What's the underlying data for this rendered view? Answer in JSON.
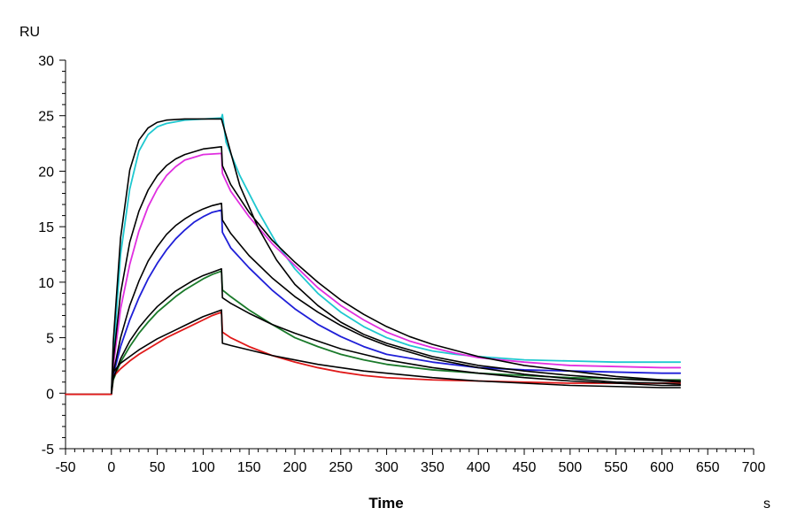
{
  "chart_data": {
    "type": "line",
    "xlabel": "Time",
    "xunit": "s",
    "ylabel": "RU",
    "xlim": [
      -50,
      700
    ],
    "ylim": [
      -5,
      30
    ],
    "xticks": [
      -50,
      0,
      50,
      100,
      150,
      200,
      250,
      300,
      350,
      400,
      450,
      500,
      550,
      600,
      650,
      700
    ],
    "yticks": [
      -5,
      0,
      5,
      10,
      15,
      20,
      25,
      30
    ],
    "grid": false,
    "legend": "none",
    "association_end": 120,
    "series": [
      {
        "color": "#1fc8d0",
        "kind": "measured",
        "points": [
          [
            -50,
            -0.1
          ],
          [
            0,
            -0.1
          ],
          [
            2,
            3.2
          ],
          [
            10,
            12.5
          ],
          [
            20,
            18.4
          ],
          [
            30,
            21.8
          ],
          [
            40,
            23.3
          ],
          [
            50,
            24.0
          ],
          [
            60,
            24.3
          ],
          [
            80,
            24.6
          ],
          [
            100,
            24.7
          ],
          [
            120,
            24.8
          ],
          [
            121,
            25.1
          ],
          [
            125,
            22.6
          ],
          [
            140,
            19.6
          ],
          [
            160,
            16.4
          ],
          [
            180,
            13.5
          ],
          [
            200,
            11.2
          ],
          [
            225,
            9.0
          ],
          [
            250,
            7.3
          ],
          [
            275,
            6.0
          ],
          [
            300,
            5.0
          ],
          [
            325,
            4.3
          ],
          [
            350,
            3.8
          ],
          [
            375,
            3.5
          ],
          [
            400,
            3.3
          ],
          [
            450,
            3.0
          ],
          [
            500,
            2.9
          ],
          [
            550,
            2.8
          ],
          [
            600,
            2.8
          ],
          [
            620,
            2.8
          ]
        ]
      },
      {
        "color": "#000000",
        "kind": "fit",
        "points": [
          [
            0,
            0
          ],
          [
            2,
            4.6
          ],
          [
            10,
            14.0
          ],
          [
            20,
            20.1
          ],
          [
            30,
            22.8
          ],
          [
            40,
            23.9
          ],
          [
            50,
            24.4
          ],
          [
            60,
            24.6
          ],
          [
            80,
            24.7
          ],
          [
            100,
            24.7
          ],
          [
            120,
            24.7
          ],
          [
            140,
            18.7
          ],
          [
            160,
            14.9
          ],
          [
            180,
            12.0
          ],
          [
            200,
            9.8
          ],
          [
            225,
            7.9
          ],
          [
            250,
            6.4
          ],
          [
            275,
            5.3
          ],
          [
            300,
            4.5
          ],
          [
            350,
            3.3
          ],
          [
            400,
            2.5
          ],
          [
            450,
            2.0
          ],
          [
            500,
            1.6
          ],
          [
            550,
            1.3
          ],
          [
            600,
            1.1
          ],
          [
            620,
            1.0
          ]
        ]
      },
      {
        "color": "#e02fe0",
        "kind": "measured",
        "points": [
          [
            -50,
            -0.1
          ],
          [
            0,
            -0.1
          ],
          [
            2,
            2.4
          ],
          [
            10,
            7.6
          ],
          [
            20,
            11.6
          ],
          [
            30,
            14.6
          ],
          [
            40,
            16.8
          ],
          [
            50,
            18.4
          ],
          [
            60,
            19.6
          ],
          [
            70,
            20.4
          ],
          [
            80,
            21.0
          ],
          [
            100,
            21.5
          ],
          [
            120,
            21.6
          ],
          [
            121,
            19.8
          ],
          [
            130,
            18.2
          ],
          [
            150,
            15.9
          ],
          [
            175,
            13.5
          ],
          [
            200,
            11.5
          ],
          [
            225,
            9.5
          ],
          [
            250,
            7.9
          ],
          [
            275,
            6.6
          ],
          [
            300,
            5.5
          ],
          [
            325,
            4.7
          ],
          [
            350,
            4.1
          ],
          [
            375,
            3.6
          ],
          [
            400,
            3.2
          ],
          [
            450,
            2.8
          ],
          [
            500,
            2.5
          ],
          [
            550,
            2.4
          ],
          [
            600,
            2.3
          ],
          [
            620,
            2.3
          ]
        ]
      },
      {
        "color": "#000000",
        "kind": "fit",
        "points": [
          [
            0,
            0
          ],
          [
            2,
            2.9
          ],
          [
            10,
            9.0
          ],
          [
            20,
            13.6
          ],
          [
            30,
            16.4
          ],
          [
            40,
            18.3
          ],
          [
            50,
            19.6
          ],
          [
            60,
            20.5
          ],
          [
            70,
            21.1
          ],
          [
            80,
            21.5
          ],
          [
            100,
            22.0
          ],
          [
            120,
            22.2
          ],
          [
            121,
            20.5
          ],
          [
            130,
            18.8
          ],
          [
            150,
            16.3
          ],
          [
            175,
            13.8
          ],
          [
            200,
            11.8
          ],
          [
            225,
            10.0
          ],
          [
            250,
            8.4
          ],
          [
            275,
            7.1
          ],
          [
            300,
            6.0
          ],
          [
            325,
            5.1
          ],
          [
            350,
            4.4
          ],
          [
            400,
            3.3
          ],
          [
            450,
            2.5
          ],
          [
            500,
            2.0
          ],
          [
            550,
            1.5
          ],
          [
            600,
            1.2
          ],
          [
            620,
            1.1
          ]
        ]
      },
      {
        "color": "#1f1fd8",
        "kind": "measured",
        "points": [
          [
            -50,
            -0.1
          ],
          [
            0,
            -0.1
          ],
          [
            2,
            1.6
          ],
          [
            10,
            4.2
          ],
          [
            20,
            6.6
          ],
          [
            30,
            8.6
          ],
          [
            40,
            10.3
          ],
          [
            50,
            11.7
          ],
          [
            60,
            12.9
          ],
          [
            70,
            13.9
          ],
          [
            80,
            14.7
          ],
          [
            90,
            15.4
          ],
          [
            100,
            15.9
          ],
          [
            110,
            16.3
          ],
          [
            120,
            16.5
          ],
          [
            121,
            14.5
          ],
          [
            130,
            13.1
          ],
          [
            150,
            11.3
          ],
          [
            175,
            9.3
          ],
          [
            200,
            7.6
          ],
          [
            225,
            6.2
          ],
          [
            250,
            5.1
          ],
          [
            275,
            4.2
          ],
          [
            300,
            3.5
          ],
          [
            350,
            2.8
          ],
          [
            400,
            2.3
          ],
          [
            450,
            2.1
          ],
          [
            500,
            2.0
          ],
          [
            550,
            1.9
          ],
          [
            600,
            1.8
          ],
          [
            620,
            1.8
          ]
        ]
      },
      {
        "color": "#000000",
        "kind": "fit",
        "points": [
          [
            0,
            0
          ],
          [
            2,
            1.8
          ],
          [
            10,
            5.0
          ],
          [
            20,
            7.9
          ],
          [
            30,
            10.1
          ],
          [
            40,
            11.9
          ],
          [
            50,
            13.2
          ],
          [
            60,
            14.3
          ],
          [
            70,
            15.1
          ],
          [
            80,
            15.7
          ],
          [
            90,
            16.2
          ],
          [
            100,
            16.6
          ],
          [
            110,
            16.9
          ],
          [
            120,
            17.1
          ],
          [
            121,
            15.6
          ],
          [
            130,
            14.4
          ],
          [
            150,
            12.4
          ],
          [
            175,
            10.4
          ],
          [
            200,
            8.7
          ],
          [
            225,
            7.3
          ],
          [
            250,
            6.1
          ],
          [
            275,
            5.1
          ],
          [
            300,
            4.3
          ],
          [
            350,
            3.1
          ],
          [
            400,
            2.3
          ],
          [
            450,
            1.7
          ],
          [
            500,
            1.3
          ],
          [
            550,
            1.0
          ],
          [
            600,
            0.9
          ],
          [
            620,
            0.8
          ]
        ]
      },
      {
        "color": "#1a7a2a",
        "kind": "measured",
        "points": [
          [
            -50,
            -0.1
          ],
          [
            0,
            -0.1
          ],
          [
            2,
            1.2
          ],
          [
            10,
            2.8
          ],
          [
            20,
            4.2
          ],
          [
            30,
            5.4
          ],
          [
            40,
            6.4
          ],
          [
            50,
            7.3
          ],
          [
            60,
            8.0
          ],
          [
            70,
            8.7
          ],
          [
            80,
            9.3
          ],
          [
            90,
            9.8
          ],
          [
            100,
            10.3
          ],
          [
            110,
            10.7
          ],
          [
            120,
            11.0
          ],
          [
            121,
            9.3
          ],
          [
            130,
            8.7
          ],
          [
            150,
            7.5
          ],
          [
            175,
            6.2
          ],
          [
            200,
            5.0
          ],
          [
            225,
            4.2
          ],
          [
            250,
            3.5
          ],
          [
            275,
            3.0
          ],
          [
            300,
            2.6
          ],
          [
            350,
            2.1
          ],
          [
            400,
            1.8
          ],
          [
            450,
            1.6
          ],
          [
            500,
            1.4
          ],
          [
            550,
            1.3
          ],
          [
            600,
            1.2
          ],
          [
            620,
            1.2
          ]
        ]
      },
      {
        "color": "#000000",
        "kind": "fit",
        "points": [
          [
            0,
            0
          ],
          [
            2,
            1.3
          ],
          [
            10,
            3.1
          ],
          [
            20,
            4.7
          ],
          [
            30,
            5.9
          ],
          [
            40,
            6.9
          ],
          [
            50,
            7.8
          ],
          [
            60,
            8.5
          ],
          [
            70,
            9.2
          ],
          [
            80,
            9.7
          ],
          [
            90,
            10.2
          ],
          [
            100,
            10.6
          ],
          [
            110,
            10.9
          ],
          [
            120,
            11.2
          ],
          [
            121,
            8.6
          ],
          [
            130,
            8.1
          ],
          [
            150,
            7.2
          ],
          [
            175,
            6.2
          ],
          [
            200,
            5.4
          ],
          [
            225,
            4.7
          ],
          [
            250,
            4.0
          ],
          [
            275,
            3.5
          ],
          [
            300,
            3.0
          ],
          [
            350,
            2.3
          ],
          [
            400,
            1.8
          ],
          [
            450,
            1.4
          ],
          [
            500,
            1.1
          ],
          [
            550,
            0.9
          ],
          [
            600,
            0.7
          ],
          [
            620,
            0.7
          ]
        ]
      },
      {
        "color": "#e01a1a",
        "kind": "measured",
        "points": [
          [
            -50,
            -0.1
          ],
          [
            0,
            -0.1
          ],
          [
            2,
            1.5
          ],
          [
            10,
            2.2
          ],
          [
            20,
            2.9
          ],
          [
            30,
            3.5
          ],
          [
            40,
            4.0
          ],
          [
            50,
            4.5
          ],
          [
            60,
            5.0
          ],
          [
            70,
            5.4
          ],
          [
            80,
            5.8
          ],
          [
            90,
            6.2
          ],
          [
            100,
            6.6
          ],
          [
            110,
            7.0
          ],
          [
            120,
            7.3
          ],
          [
            121,
            5.5
          ],
          [
            130,
            5.0
          ],
          [
            150,
            4.2
          ],
          [
            175,
            3.4
          ],
          [
            200,
            2.8
          ],
          [
            225,
            2.3
          ],
          [
            250,
            1.9
          ],
          [
            275,
            1.6
          ],
          [
            300,
            1.4
          ],
          [
            350,
            1.2
          ],
          [
            400,
            1.1
          ],
          [
            450,
            1.0
          ],
          [
            500,
            0.9
          ],
          [
            550,
            0.9
          ],
          [
            600,
            0.9
          ],
          [
            620,
            0.9
          ]
        ]
      },
      {
        "color": "#000000",
        "kind": "fit",
        "points": [
          [
            0,
            0
          ],
          [
            2,
            1.9
          ],
          [
            10,
            2.7
          ],
          [
            20,
            3.3
          ],
          [
            30,
            3.9
          ],
          [
            40,
            4.4
          ],
          [
            50,
            4.9
          ],
          [
            60,
            5.3
          ],
          [
            70,
            5.7
          ],
          [
            80,
            6.1
          ],
          [
            90,
            6.5
          ],
          [
            100,
            6.9
          ],
          [
            110,
            7.2
          ],
          [
            120,
            7.5
          ],
          [
            121,
            4.5
          ],
          [
            130,
            4.3
          ],
          [
            150,
            3.9
          ],
          [
            175,
            3.4
          ],
          [
            200,
            3.0
          ],
          [
            225,
            2.6
          ],
          [
            250,
            2.3
          ],
          [
            275,
            2.0
          ],
          [
            300,
            1.8
          ],
          [
            350,
            1.4
          ],
          [
            400,
            1.1
          ],
          [
            450,
            0.9
          ],
          [
            500,
            0.7
          ],
          [
            550,
            0.6
          ],
          [
            600,
            0.5
          ],
          [
            620,
            0.5
          ]
        ]
      }
    ]
  }
}
